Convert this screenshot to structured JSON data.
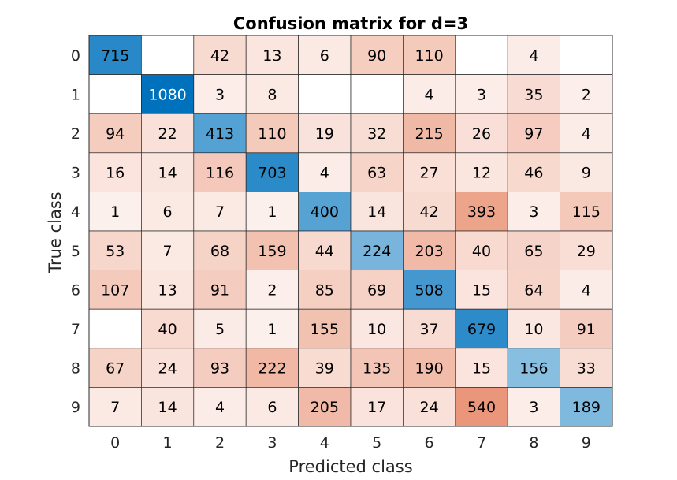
{
  "chart_data": {
    "type": "heatmap",
    "title": "Confusion matrix for d=3",
    "xlabel": "Predicted class",
    "ylabel": "True class",
    "x_categories": [
      "0",
      "1",
      "2",
      "3",
      "4",
      "5",
      "6",
      "7",
      "8",
      "9"
    ],
    "y_categories": [
      "0",
      "1",
      "2",
      "3",
      "4",
      "5",
      "6",
      "7",
      "8",
      "9"
    ],
    "matrix": [
      [
        715,
        null,
        42,
        13,
        6,
        90,
        110,
        null,
        4,
        null
      ],
      [
        null,
        1080,
        3,
        8,
        null,
        null,
        4,
        3,
        35,
        2
      ],
      [
        94,
        22,
        413,
        110,
        19,
        32,
        215,
        26,
        97,
        4
      ],
      [
        16,
        14,
        116,
        703,
        4,
        63,
        27,
        12,
        46,
        9
      ],
      [
        1,
        6,
        7,
        1,
        400,
        14,
        42,
        393,
        3,
        115
      ],
      [
        53,
        7,
        68,
        159,
        44,
        224,
        203,
        40,
        65,
        29
      ],
      [
        107,
        13,
        91,
        2,
        85,
        69,
        508,
        15,
        64,
        4
      ],
      [
        null,
        40,
        5,
        1,
        155,
        10,
        37,
        679,
        10,
        91
      ],
      [
        67,
        24,
        93,
        222,
        39,
        135,
        190,
        15,
        156,
        33
      ],
      [
        7,
        14,
        4,
        6,
        205,
        17,
        24,
        540,
        3,
        189
      ]
    ],
    "colors": {
      "diagonal_low": "#dcecf6",
      "diagonal_high": "#0072bd",
      "offdiag_low": "#fdf4f1",
      "offdiag_high": "#e9967a",
      "empty": "#ffffff",
      "grid": "#262626"
    }
  }
}
